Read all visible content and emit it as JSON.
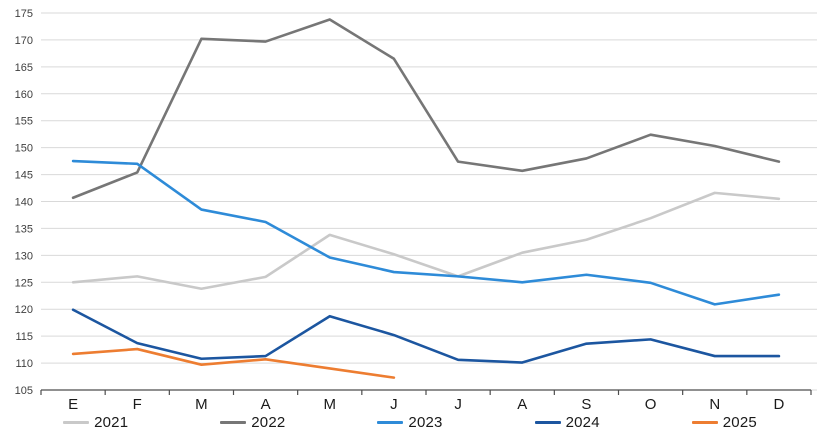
{
  "chart_data": {
    "type": "line",
    "x_axis": {
      "categories": [
        "E",
        "F",
        "M",
        "A",
        "M",
        "J",
        "J",
        "A",
        "S",
        "O",
        "N",
        "D"
      ]
    },
    "y_axis": {
      "min": 105,
      "max": 175,
      "step": 5,
      "tick_labels": [
        "105",
        "110",
        "115",
        "120",
        "125",
        "130",
        "135",
        "140",
        "145",
        "150",
        "155",
        "160",
        "165",
        "170",
        "175"
      ]
    },
    "grid": true,
    "legend_position": "bottom",
    "series": [
      {
        "name": "2021",
        "color": "#C9C9C9",
        "values": [
          125.0,
          126.1,
          123.8,
          126.0,
          133.8,
          130.2,
          126.1,
          130.5,
          132.9,
          136.9,
          141.6,
          140.5
        ]
      },
      {
        "name": "2022",
        "color": "#767676",
        "values": [
          140.7,
          145.4,
          170.2,
          169.7,
          173.8,
          166.5,
          147.4,
          145.7,
          148.0,
          152.4,
          150.3,
          147.4
        ]
      },
      {
        "name": "2023",
        "color": "#2E8BD8",
        "values": [
          147.5,
          147.0,
          138.5,
          136.2,
          129.6,
          126.9,
          126.1,
          125.0,
          126.4,
          124.9,
          120.9,
          122.7
        ]
      },
      {
        "name": "2024",
        "color": "#1C56A0",
        "values": [
          119.9,
          113.7,
          110.8,
          111.3,
          118.7,
          115.2,
          110.6,
          110.1,
          113.6,
          114.4,
          111.3,
          111.3
        ]
      },
      {
        "name": "2025",
        "color": "#ED7D31",
        "values": [
          111.7,
          112.6,
          109.7,
          110.7,
          109.0,
          107.3
        ]
      }
    ]
  },
  "style_colors": {
    "gridline": "#D9D9D9",
    "axis_line": "#4D4D4D",
    "y_tick_label": "#404040",
    "x_tick_label": "#1A1A1A"
  }
}
